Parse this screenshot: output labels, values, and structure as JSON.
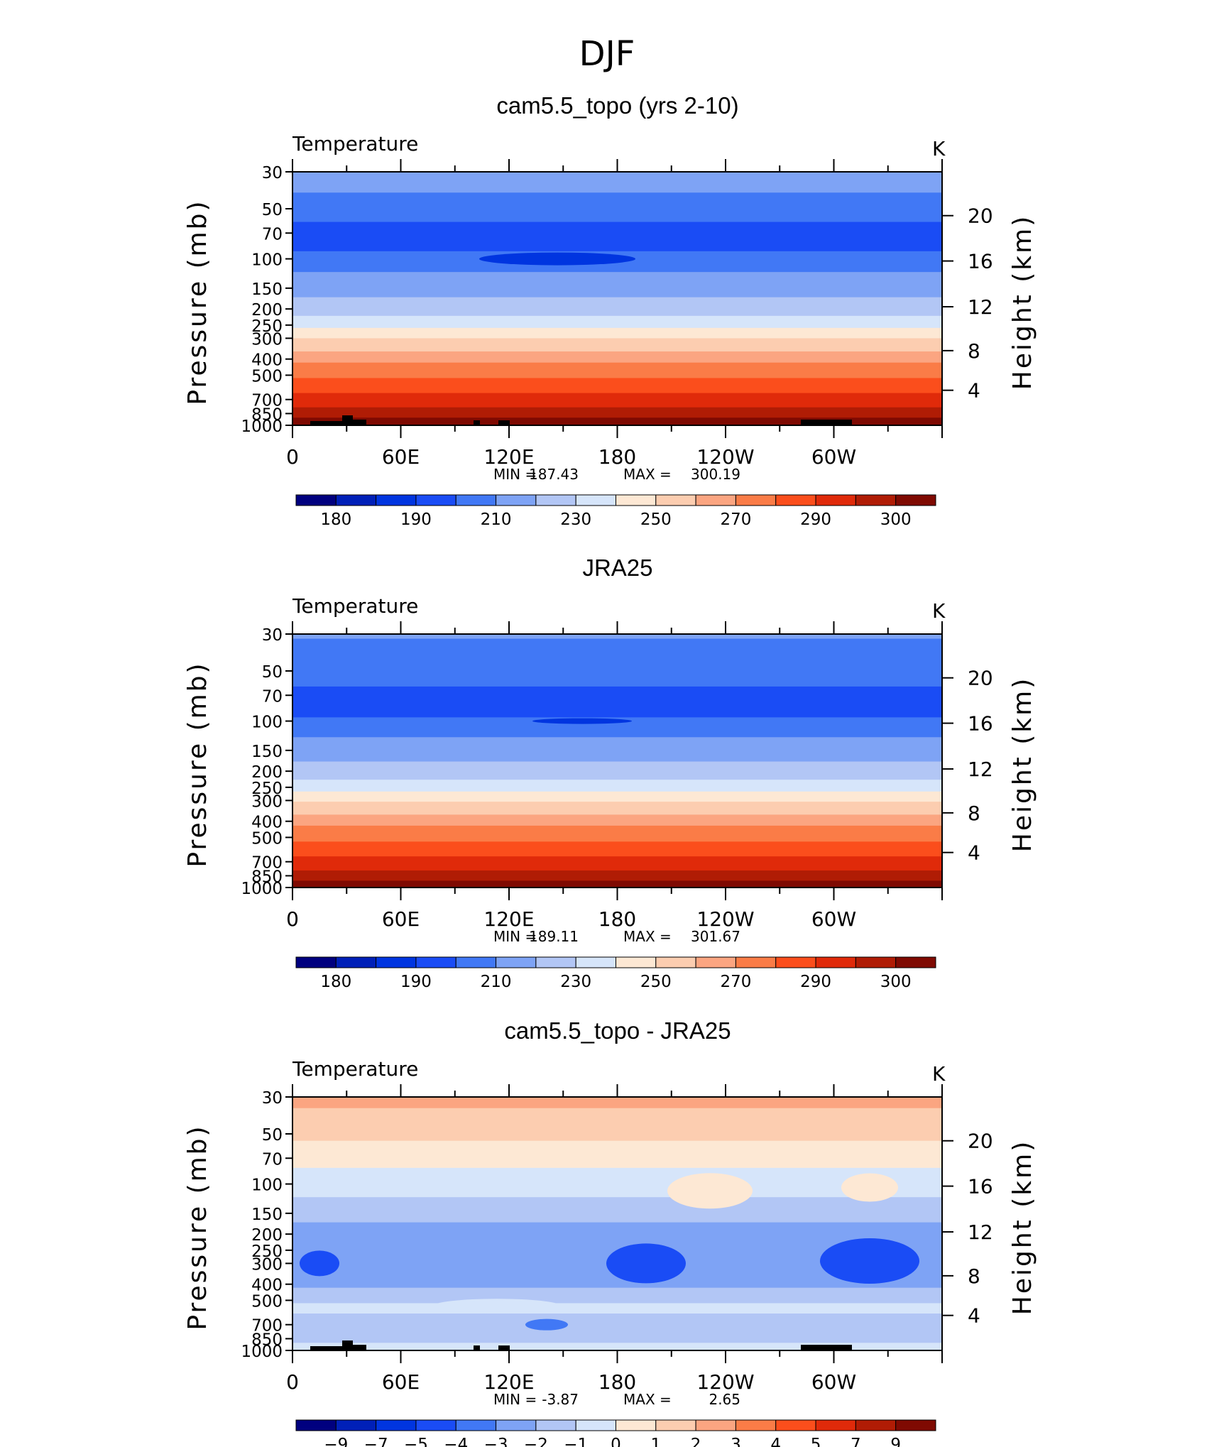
{
  "figure_title": "DJF",
  "colors": {
    "full": [
      "#00007f",
      "#0020b8",
      "#0035e0",
      "#1a4cf5",
      "#4178f5",
      "#7ea3f5",
      "#b2c6f5",
      "#d6e5fa",
      "#fde8d4",
      "#fccdb0",
      "#fba581",
      "#fa7c47",
      "#fb4e1c",
      "#e02a0a",
      "#b01c05",
      "#7f0a02"
    ],
    "diff": [
      "#00007f",
      "#0020b8",
      "#0035e0",
      "#1a4cf5",
      "#4178f5",
      "#7ea3f5",
      "#b2c6f5",
      "#d6e5fa",
      "#fde8d4",
      "#fccdb0",
      "#fba581",
      "#fa7c47",
      "#fb4e1c",
      "#e02a0a",
      "#b01c05",
      "#7f0a02"
    ]
  },
  "chart_data": [
    {
      "type": "heatmap",
      "title": "cam5.5_topo (yrs 2-10)",
      "variable_label": "Temperature",
      "units_label": "K",
      "ylabel": "Pressure (mb)",
      "ylabel_right": "Height (km)",
      "x_ticks": [
        "0",
        "60E",
        "120E",
        "180",
        "120W",
        "60W"
      ],
      "y_ticks": [
        "30",
        "50",
        "70",
        "100",
        "150",
        "200",
        "250",
        "300",
        "400",
        "500",
        "700",
        "850",
        "1000"
      ],
      "y_right_ticks": [
        "20",
        "16",
        "12",
        "8",
        "4"
      ],
      "stats": {
        "min_label": "MIN",
        "min": "187.43",
        "max_label": "MAX",
        "max": "300.19"
      },
      "colorbar_labels": [
        "180",
        "190",
        "210",
        "230",
        "250",
        "270",
        "290",
        "300"
      ],
      "scheme": "full",
      "profile": [
        [
          30,
          6
        ],
        [
          40,
          5
        ],
        [
          60,
          4
        ],
        [
          90,
          3
        ],
        [
          120,
          4
        ],
        [
          170,
          5
        ],
        [
          220,
          6
        ],
        [
          260,
          7
        ],
        [
          300,
          8
        ],
        [
          360,
          9
        ],
        [
          420,
          10
        ],
        [
          520,
          11
        ],
        [
          640,
          12
        ],
        [
          780,
          13
        ],
        [
          900,
          14
        ],
        [
          1000,
          15
        ]
      ],
      "topography": true
    },
    {
      "type": "heatmap",
      "title": "JRA25",
      "variable_label": "Temperature",
      "units_label": "K",
      "ylabel": "Pressure (mb)",
      "ylabel_right": "Height (km)",
      "x_ticks": [
        "0",
        "60E",
        "120E",
        "180",
        "120W",
        "60W"
      ],
      "y_ticks": [
        "30",
        "50",
        "70",
        "100",
        "150",
        "200",
        "250",
        "300",
        "400",
        "500",
        "700",
        "850",
        "1000"
      ],
      "y_right_ticks": [
        "20",
        "16",
        "12",
        "8",
        "4"
      ],
      "stats": {
        "min_label": "MIN",
        "min": "189.11",
        "max_label": "MAX",
        "max": "301.67"
      },
      "colorbar_labels": [
        "180",
        "190",
        "210",
        "230",
        "250",
        "270",
        "290",
        "300"
      ],
      "scheme": "full",
      "profile": [
        [
          32,
          5
        ],
        [
          62,
          4
        ],
        [
          95,
          3
        ],
        [
          125,
          4
        ],
        [
          175,
          5
        ],
        [
          225,
          6
        ],
        [
          265,
          7
        ],
        [
          305,
          8
        ],
        [
          365,
          9
        ],
        [
          425,
          10
        ],
        [
          530,
          11
        ],
        [
          650,
          12
        ],
        [
          790,
          13
        ],
        [
          910,
          14
        ],
        [
          1000,
          15
        ]
      ],
      "topography": false
    },
    {
      "type": "heatmap",
      "title": "cam5.5_topo - JRA25",
      "variable_label": "Temperature",
      "units_label": "K",
      "ylabel": "Pressure (mb)",
      "ylabel_right": "Height (km)",
      "x_ticks": [
        "0",
        "60E",
        "120E",
        "180",
        "120W",
        "60W"
      ],
      "y_ticks": [
        "30",
        "50",
        "70",
        "100",
        "150",
        "200",
        "250",
        "300",
        "400",
        "500",
        "700",
        "850",
        "1000"
      ],
      "y_right_ticks": [
        "20",
        "16",
        "12",
        "8",
        "4"
      ],
      "stats": {
        "min_label": "MIN",
        "min": "-3.87",
        "max_label": "MAX",
        "max": "2.65"
      },
      "colorbar_labels": [
        "-9",
        "-7",
        "-5",
        "-4",
        "-3",
        "-2",
        "-1",
        "0",
        "1",
        "2",
        "3",
        "4",
        "5",
        "7",
        "9"
      ],
      "scheme": "diff",
      "profile": [
        [
          35,
          10
        ],
        [
          55,
          9
        ],
        [
          80,
          8
        ],
        [
          120,
          7
        ],
        [
          170,
          6
        ],
        [
          420,
          5
        ],
        [
          520,
          6
        ],
        [
          600,
          7
        ],
        [
          700,
          6
        ],
        [
          900,
          6
        ],
        [
          1000,
          7
        ]
      ],
      "topography": true
    }
  ]
}
